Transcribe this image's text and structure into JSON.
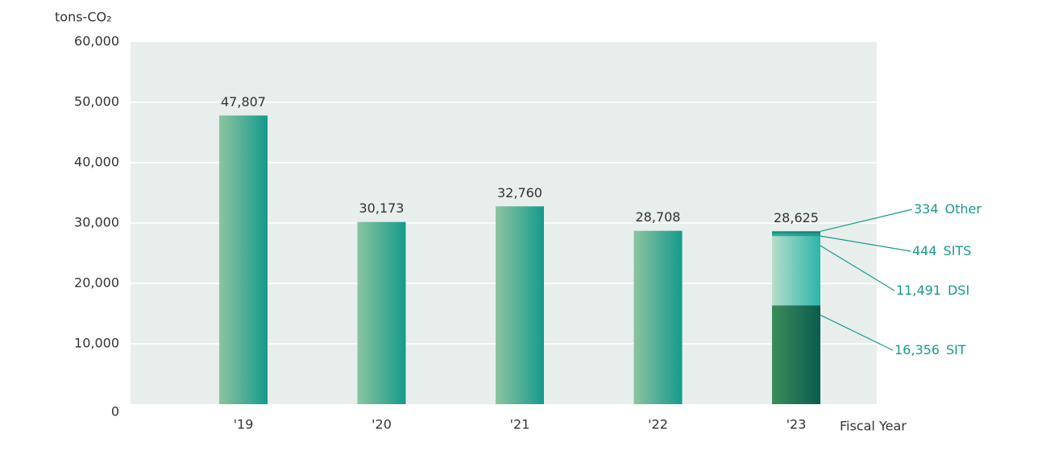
{
  "chart_data": {
    "type": "bar",
    "y_label": "tons-CO₂",
    "x_label": "Fiscal Year",
    "categories": [
      "'19",
      "'20",
      "'21",
      "'22",
      "'23"
    ],
    "values": [
      47807,
      30173,
      32760,
      28708,
      28625
    ],
    "value_labels": [
      "47,807",
      "30,173",
      "32,760",
      "28,708",
      "28,625"
    ],
    "colors": [
      "#8cc4a0",
      "#159a8c"
    ],
    "stack": [
      {
        "name": "SIT",
        "value": 16356,
        "value_label": "16,356",
        "colors": [
          "#3d8c5c",
          "#0a5c4e"
        ]
      },
      {
        "name": "DSI",
        "value": 11491,
        "value_label": "11,491",
        "colors": [
          "#b7ddcb",
          "#2cb5aa"
        ]
      },
      {
        "name": "SITS",
        "value": 444,
        "value_label": "444",
        "colors": [
          "#2fae9f",
          "#1d9a8e"
        ]
      },
      {
        "name": "Other",
        "value": 334,
        "value_label": "334",
        "colors": [
          "#1b8c80",
          "#167e74"
        ]
      }
    ],
    "ylim": [
      0,
      60000
    ],
    "yticks": [
      0,
      {
        "value": 10000,
        "label": "10,000"
      },
      {
        "value": 20000,
        "label": "20,000"
      },
      {
        "value": 30000,
        "label": "30,000"
      },
      {
        "value": 40000,
        "label": "40,000"
      },
      {
        "value": 50000,
        "label": "50,000"
      },
      {
        "value": 60000,
        "label": "60,000"
      }
    ],
    "grid": true
  }
}
